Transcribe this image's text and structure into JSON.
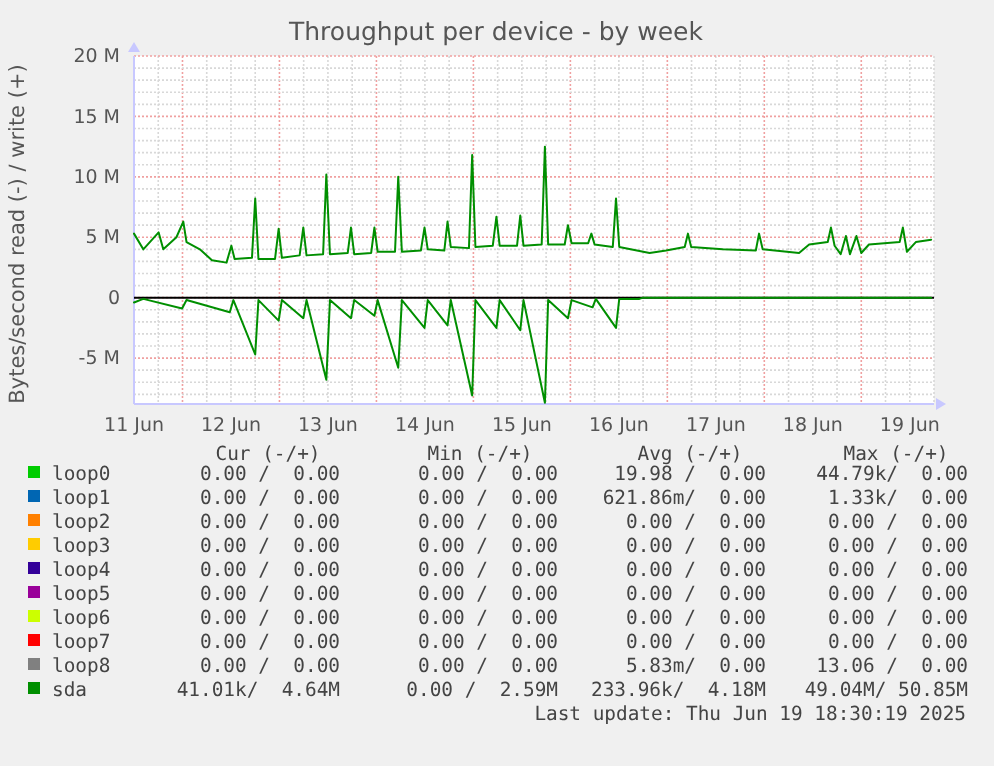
{
  "chart_data": {
    "type": "line",
    "title": "Throughput per device - by week",
    "ylabel": "Bytes/second read (-) / write (+)",
    "xlim": [
      "2025-06-11T12:00",
      "2025-06-19T18:00"
    ],
    "xticks": [
      {
        "value": "2025-06-11T12:00",
        "label": "11 Jun"
      },
      {
        "value": "2025-06-11T18:00",
        "label": null
      },
      {
        "value": "2025-06-12T00:00",
        "label": null
      },
      {
        "value": "2025-06-12T06:00",
        "label": null
      },
      {
        "value": "2025-06-12T12:00",
        "label": "12 Jun"
      },
      {
        "value": "2025-06-12T18:00",
        "label": null
      },
      {
        "value": "2025-06-13T00:00",
        "label": null
      },
      {
        "value": "2025-06-13T06:00",
        "label": null
      },
      {
        "value": "2025-06-13T12:00",
        "label": "13 Jun"
      },
      {
        "value": "2025-06-13T18:00",
        "label": null
      },
      {
        "value": "2025-06-14T00:00",
        "label": null
      },
      {
        "value": "2025-06-14T06:00",
        "label": null
      },
      {
        "value": "2025-06-14T12:00",
        "label": "14 Jun"
      },
      {
        "value": "2025-06-14T18:00",
        "label": null
      },
      {
        "value": "2025-06-15T00:00",
        "label": null
      },
      {
        "value": "2025-06-15T06:00",
        "label": null
      },
      {
        "value": "2025-06-15T12:00",
        "label": "15 Jun"
      },
      {
        "value": "2025-06-15T18:00",
        "label": null
      },
      {
        "value": "2025-06-16T00:00",
        "label": null
      },
      {
        "value": "2025-06-16T06:00",
        "label": null
      },
      {
        "value": "2025-06-16T12:00",
        "label": "16 Jun"
      },
      {
        "value": "2025-06-16T18:00",
        "label": null
      },
      {
        "value": "2025-06-17T00:00",
        "label": null
      },
      {
        "value": "2025-06-17T06:00",
        "label": null
      },
      {
        "value": "2025-06-17T12:00",
        "label": "17 Jun"
      },
      {
        "value": "2025-06-17T18:00",
        "label": null
      },
      {
        "value": "2025-06-18T00:00",
        "label": null
      },
      {
        "value": "2025-06-18T06:00",
        "label": null
      },
      {
        "value": "2025-06-18T12:00",
        "label": "18 Jun"
      },
      {
        "value": "2025-06-18T18:00",
        "label": null
      },
      {
        "value": "2025-06-19T00:00",
        "label": null
      },
      {
        "value": "2025-06-19T06:00",
        "label": null
      },
      {
        "value": "2025-06-19T12:00",
        "label": "19 Jun"
      },
      {
        "value": "2025-06-19T18:00",
        "label": null
      }
    ],
    "ylim": [
      -8800000,
      20000000
    ],
    "yticks": [
      {
        "value": -8000000,
        "label": null
      },
      {
        "value": -7000000,
        "label": null
      },
      {
        "value": -6000000,
        "label": null
      },
      {
        "value": -5000000,
        "label": "-5 M"
      },
      {
        "value": -4000000,
        "label": null
      },
      {
        "value": -3000000,
        "label": null
      },
      {
        "value": -2000000,
        "label": null
      },
      {
        "value": -1000000,
        "label": null
      },
      0,
      {
        "value": 1000000,
        "label": null
      },
      {
        "value": 2000000,
        "label": null
      },
      {
        "value": 3000000,
        "label": null
      },
      {
        "value": 4000000,
        "label": null
      },
      {
        "value": 5000000,
        "label": "5 M"
      },
      {
        "value": 6000000,
        "label": null
      },
      {
        "value": 7000000,
        "label": null
      },
      {
        "value": 8000000,
        "label": null
      },
      {
        "value": 9000000,
        "label": null
      },
      {
        "value": 10000000,
        "label": "10 M"
      },
      {
        "value": 11000000,
        "label": null
      },
      {
        "value": 12000000,
        "label": null
      },
      {
        "value": 13000000,
        "label": null
      },
      {
        "value": 14000000,
        "label": null
      },
      {
        "value": 15000000,
        "label": "15 M"
      },
      {
        "value": 16000000,
        "label": null
      },
      {
        "value": 17000000,
        "label": null
      },
      {
        "value": 18000000,
        "label": null
      },
      {
        "value": 19000000,
        "label": null
      },
      {
        "value": 20000000,
        "label": "20 M"
      }
    ],
    "grid": true,
    "legend": "bottom",
    "ref_lines": [
      {
        "axis": "y",
        "value": 0,
        "color": "#000000"
      }
    ],
    "series": [
      {
        "name": "loop0",
        "color": "#00cc00"
      },
      {
        "name": "loop1",
        "color": "#0066b3"
      },
      {
        "name": "loop2",
        "color": "#ff8000"
      },
      {
        "name": "loop3",
        "color": "#ffcc00"
      },
      {
        "name": "loop4",
        "color": "#330099"
      },
      {
        "name": "loop5",
        "color": "#990099"
      },
      {
        "name": "loop6",
        "color": "#ccff00"
      },
      {
        "name": "loop7",
        "color": "#ff0000"
      },
      {
        "name": "loop8",
        "color": "#808080"
      },
      {
        "name": "sda",
        "color": "#008f00",
        "x": [
          "2025-06-11T12:00",
          "2025-06-11T14:18",
          "2025-06-11T18:06",
          "2025-06-11T19:15",
          "2025-06-11T22:30",
          "2025-06-12T00:12",
          "2025-06-12T01:00",
          "2025-06-12T04:18",
          "2025-06-12T07:18",
          "2025-06-12T10:54",
          "2025-06-12T12:06",
          "2025-06-12T12:54",
          "2025-06-12T17:12",
          "2025-06-12T18:00",
          "2025-06-12T18:48",
          "2025-06-12T22:54",
          "2025-06-12T23:48",
          "2025-06-13T00:36",
          "2025-06-13T05:00",
          "2025-06-13T05:54",
          "2025-06-13T06:42",
          "2025-06-13T10:48",
          "2025-06-13T11:36",
          "2025-06-13T12:30",
          "2025-06-13T16:54",
          "2025-06-13T17:42",
          "2025-06-13T18:30",
          "2025-06-13T22:42",
          "2025-06-13T23:30",
          "2025-06-14T00:18",
          "2025-06-14T04:36",
          "2025-06-14T05:24",
          "2025-06-14T06:18",
          "2025-06-14T11:00",
          "2025-06-14T11:54",
          "2025-06-14T12:42",
          "2025-06-14T16:48",
          "2025-06-14T17:36",
          "2025-06-14T18:24",
          "2025-06-14T22:54",
          "2025-06-14T23:42",
          "2025-06-15T00:30",
          "2025-06-15T04:48",
          "2025-06-15T05:42",
          "2025-06-15T06:30",
          "2025-06-15T10:48",
          "2025-06-15T11:36",
          "2025-06-15T12:24",
          "2025-06-15T16:54",
          "2025-06-15T17:42",
          "2025-06-15T18:30",
          "2025-06-15T22:36",
          "2025-06-15T23:24",
          "2025-06-16T00:18",
          "2025-06-16T04:24",
          "2025-06-16T05:12",
          "2025-06-16T06:00",
          "2025-06-16T10:30",
          "2025-06-16T11:18",
          "2025-06-16T12:06",
          "2025-06-16T19:36",
          "2025-06-16T23:42",
          "2025-06-17T04:18",
          "2025-06-17T05:06",
          "2025-06-17T05:54",
          "2025-06-17T13:42",
          "2025-06-17T21:54",
          "2025-06-17T22:42",
          "2025-06-17T23:36",
          "2025-06-18T08:36",
          "2025-06-18T11:06",
          "2025-06-18T15:42",
          "2025-06-18T16:30",
          "2025-06-18T17:24",
          "2025-06-18T18:54",
          "2025-06-18T20:12",
          "2025-06-18T21:12",
          "2025-06-18T22:48",
          "2025-06-19T00:00",
          "2025-06-19T01:54",
          "2025-06-19T09:30",
          "2025-06-19T10:18",
          "2025-06-19T11:18",
          "2025-06-19T13:30",
          "2025-06-19T17:18"
        ],
        "values": [
          5300000,
          4000000,
          5400000,
          4000000,
          5000000,
          6300000,
          4600000,
          4000000,
          3100000,
          2900000,
          4300000,
          3200000,
          3300000,
          8200000,
          3200000,
          3200000,
          5700000,
          3300000,
          3500000,
          5800000,
          3500000,
          3600000,
          10200000,
          3600000,
          3700000,
          5800000,
          3600000,
          3700000,
          5800000,
          3800000,
          3800000,
          10000000,
          3800000,
          3900000,
          5800000,
          4000000,
          3900000,
          6300000,
          4200000,
          4100000,
          11800000,
          4200000,
          4300000,
          6700000,
          4300000,
          4300000,
          6800000,
          4300000,
          4400000,
          12500000,
          4400000,
          4400000,
          6000000,
          4500000,
          4500000,
          5300000,
          4400000,
          4200000,
          8200000,
          4200000,
          3700000,
          3900000,
          4200000,
          5300000,
          4200000,
          4000000,
          3900000,
          5300000,
          4000000,
          3700000,
          4400000,
          4600000,
          5800000,
          4300000,
          3600000,
          5100000,
          3600000,
          5100000,
          3700000,
          4400000,
          4600000,
          5800000,
          3800000,
          4600000,
          4800000
        ]
      },
      {
        "color": "#008f00",
        "x": [
          "2025-06-11T12:00",
          "2025-06-11T14:18",
          "2025-06-11T23:54",
          "2025-06-12T01:00",
          "2025-06-12T11:42",
          "2025-06-12T12:36",
          "2025-06-12T18:00",
          "2025-06-12T18:48",
          "2025-06-12T23:48",
          "2025-06-13T00:36",
          "2025-06-13T05:54",
          "2025-06-13T06:42",
          "2025-06-13T11:36",
          "2025-06-13T12:30",
          "2025-06-13T17:42",
          "2025-06-13T18:30",
          "2025-06-13T23:30",
          "2025-06-14T00:18",
          "2025-06-14T05:24",
          "2025-06-14T06:18",
          "2025-06-14T11:54",
          "2025-06-14T12:42",
          "2025-06-14T17:36",
          "2025-06-14T18:24",
          "2025-06-14T23:42",
          "2025-06-15T00:30",
          "2025-06-15T05:42",
          "2025-06-15T06:30",
          "2025-06-15T11:36",
          "2025-06-15T12:24",
          "2025-06-15T17:42",
          "2025-06-15T18:30",
          "2025-06-15T23:24",
          "2025-06-16T00:18",
          "2025-06-16T05:30",
          "2025-06-16T06:18",
          "2025-06-16T11:18",
          "2025-06-16T12:06",
          "2025-06-16T17:06",
          "2025-06-16T18:00",
          "2025-06-19T17:18"
        ],
        "values": [
          -400000,
          -100000,
          -900000,
          -200000,
          -1200000,
          -200000,
          -4700000,
          -200000,
          -1900000,
          -200000,
          -1700000,
          -200000,
          -6800000,
          -200000,
          -1700000,
          -200000,
          -1500000,
          -200000,
          -5800000,
          -200000,
          -2500000,
          -200000,
          -2300000,
          -200000,
          -8100000,
          -200000,
          -2500000,
          -200000,
          -2700000,
          -200000,
          -8700000,
          -200000,
          -1700000,
          -200000,
          -800000,
          -100000,
          -2500000,
          -100000,
          -100000,
          0,
          0
        ]
      }
    ],
    "annotations": [
      "Cur (-/+)",
      "Min (-/+)",
      "Avg (-/+)",
      "Max (-/+)",
      "0.00 /  0.00",
      "0.00 /  0.00",
      "19.98 /  0.00",
      "44.79k/  0.00",
      "0.00 /  0.00",
      "0.00 /  0.00",
      "621.86m/  0.00",
      "1.33k/  0.00",
      "0.00 /  0.00",
      "0.00 /  0.00",
      "0.00 /  0.00",
      "0.00 /  0.00",
      "0.00 /  0.00",
      "0.00 /  0.00",
      "0.00 /  0.00",
      "0.00 /  0.00",
      "0.00 /  0.00",
      "0.00 /  0.00",
      "0.00 /  0.00",
      "0.00 /  0.00",
      "0.00 /  0.00",
      "0.00 /  0.00",
      "0.00 /  0.00",
      "0.00 /  0.00",
      "0.00 /  0.00",
      "0.00 /  0.00",
      "0.00 /  0.00",
      "0.00 /  0.00",
      "0.00 /  0.00",
      "0.00 /  0.00",
      "0.00 /  0.00",
      "0.00 /  0.00",
      "0.00 /  0.00",
      "0.00 /  0.00",
      "5.83m/  0.00",
      "13.06 /  0.00",
      "41.01k/  4.64M",
      "0.00 /  2.59M",
      "233.96k/  4.18M",
      "49.04M/ 50.85M",
      "Last update: Thu Jun 19 18:30:19 2025"
    ]
  }
}
